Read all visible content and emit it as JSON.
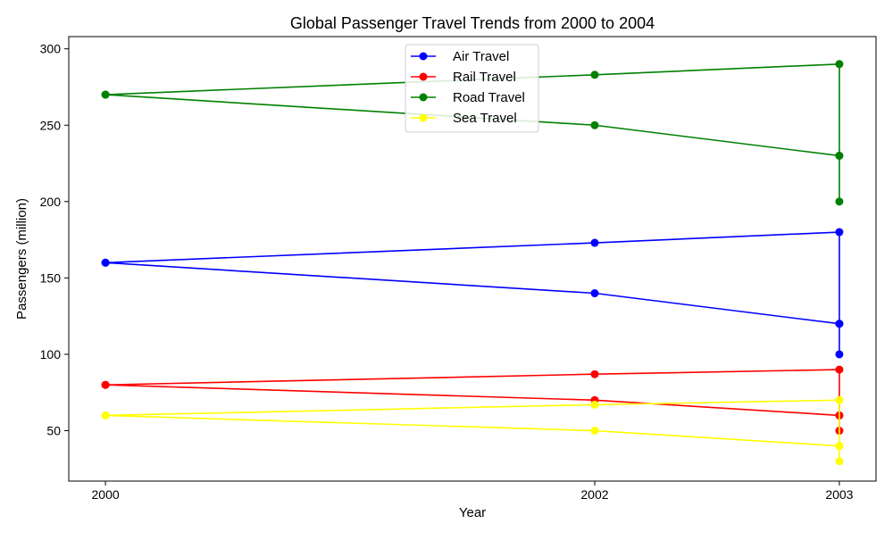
{
  "chart_data": {
    "type": "line",
    "title": "Global Passenger Travel Trends from 2000 to 2004",
    "xlabel": "Year",
    "ylabel": "Passengers (million)",
    "x": [
      "2000",
      "2002",
      "2003",
      "2003",
      "2003",
      "2003",
      "2002",
      "2000"
    ],
    "x_ticks": [
      "2000",
      "2002",
      "2003"
    ],
    "y_ticks": [
      50,
      100,
      150,
      200,
      250,
      300
    ],
    "xlim": [
      1999.85,
      2003.15
    ],
    "ylim": [
      17,
      308
    ],
    "grid": false,
    "legend_position": "top-center",
    "series": [
      {
        "name": "Air Travel",
        "color": "#0000ff",
        "values": [
          160,
          140,
          120,
          100,
          120,
          180,
          173,
          160
        ]
      },
      {
        "name": "Rail Travel",
        "color": "#ff0000",
        "values": [
          80,
          70,
          60,
          50,
          60,
          90,
          87,
          80
        ]
      },
      {
        "name": "Road Travel",
        "color": "#008000",
        "values": [
          270,
          250,
          230,
          200,
          230,
          290,
          283,
          270
        ]
      },
      {
        "name": "Sea Travel",
        "color": "#ffff00",
        "values": [
          60,
          50,
          40,
          30,
          40,
          70,
          67,
          60
        ]
      }
    ]
  }
}
